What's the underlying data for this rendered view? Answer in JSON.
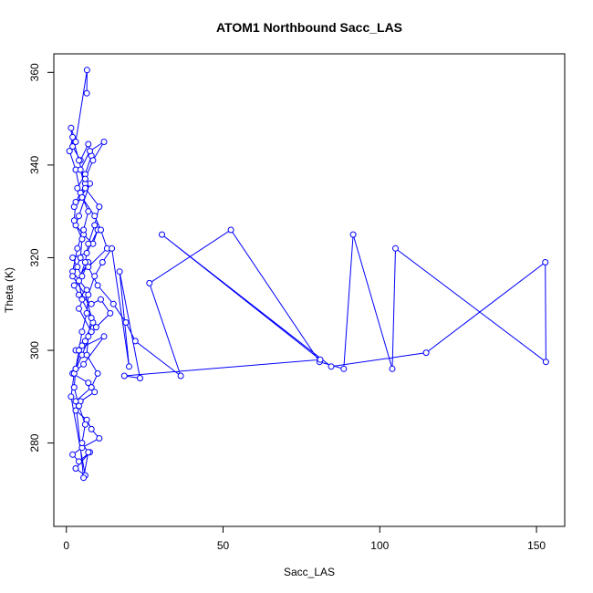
{
  "chart_data": {
    "type": "line",
    "title": "ATOM1 Northbound Sacc_LAS",
    "xlabel": "Sacc_LAS",
    "ylabel": "Theta (K)",
    "xlim": [
      -4,
      159
    ],
    "ylim": [
      262,
      364
    ],
    "x_ticks": [
      0,
      50,
      100,
      150
    ],
    "y_ticks": [
      280,
      300,
      320,
      340,
      360
    ],
    "grid": false,
    "legend": "none",
    "markers": "open-circle",
    "color": "#0000ff",
    "series": [
      {
        "x": [
          6.5,
          6.6,
          3.0,
          1.5,
          2.0,
          4.5,
          7.0,
          8.0,
          6.0,
          3.5,
          5.0,
          2.5,
          7.5,
          4.0,
          3.0,
          5.5,
          8.5,
          10.0,
          6.5,
          2.0,
          3.5,
          5.0,
          7.0,
          2.5,
          4.0,
          8.0,
          11.0,
          14.0,
          9.5,
          6.0,
          3.0,
          12.0,
          5.5,
          2.0,
          7.0,
          9.0,
          4.5,
          3.0,
          6.5,
          8.0,
          10.5,
          5.0,
          2.0,
          4.0,
          7.5,
          3.0,
          6.0,
          1.5,
          2.5,
          5.0,
          8.0,
          4.0,
          6.5,
          2.0,
          3.5,
          5.5,
          7.0,
          4.5,
          3.0,
          1.0,
          2.0,
          4.0,
          6.0,
          3.0,
          2.5,
          5.0,
          4.5,
          2.0,
          6.0,
          8.5,
          5.0,
          3.0,
          2.5,
          4.0,
          6.0,
          5.0,
          7.0,
          5.5,
          3.0,
          8.0,
          10.0,
          6.5,
          7.0,
          8.0,
          5.0,
          4.0,
          6.0,
          7.0,
          9.0,
          10.5,
          6.0,
          4.5,
          7.5,
          12.0,
          8.5,
          6.0,
          5.0,
          9.0,
          11.0,
          13.0,
          7.0,
          10.0,
          15.0,
          19.0,
          22.0,
          36.5,
          26.5,
          52.5,
          80.8,
          88.5,
          91.5,
          104.0,
          105.0,
          153.0,
          152.8,
          114.8,
          84.5,
          30.5,
          81.0,
          18.5,
          23.5,
          17.0,
          20.0,
          14.5,
          11.5,
          9.0,
          7.0,
          6.5,
          5.0,
          4.0,
          3.0
        ],
        "y": [
          355.5,
          360.5,
          345.0,
          348.0,
          344.0,
          341.0,
          344.5,
          342.0,
          338.0,
          335.0,
          333.0,
          331.0,
          336.0,
          329.0,
          327.0,
          325.0,
          323.0,
          326.0,
          321.0,
          320.0,
          318.0,
          316.0,
          319.0,
          314.0,
          312.0,
          310.0,
          311.0,
          308.0,
          305.0,
          302.0,
          300.0,
          303.0,
          297.0,
          295.0,
          293.0,
          291.0,
          289.0,
          287.0,
          285.0,
          283.0,
          281.0,
          279.0,
          277.5,
          276.0,
          278.0,
          274.5,
          273.0,
          290.0,
          295.0,
          299.0,
          304.0,
          309.0,
          313.0,
          317.0,
          322.0,
          326.0,
          330.0,
          334.0,
          339.0,
          343.0,
          346.0,
          341.0,
          336.0,
          332.0,
          328.0,
          324.0,
          320.0,
          316.0,
          312.0,
          306.0,
          301.0,
          296.0,
          292.0,
          288.0,
          284.0,
          280.0,
          278.0,
          272.5,
          289.0,
          292.0,
          295.0,
          299.0,
          303.0,
          307.0,
          311.0,
          315.0,
          319.0,
          323.0,
          327.0,
          331.0,
          335.0,
          339.0,
          343.0,
          345.0,
          341.0,
          337.0,
          333.0,
          329.0,
          326.0,
          322.0,
          318.0,
          314.0,
          310.0,
          306.0,
          302.0,
          294.5,
          314.5,
          326.0,
          297.5,
          296.0,
          325.0,
          296.0,
          322.0,
          297.5,
          319.0,
          299.5,
          296.5,
          325.0,
          298.0,
          294.5,
          294.0,
          317.0,
          296.5,
          322.0,
          319.0,
          316.0,
          312.0,
          308.0,
          304.0,
          300.0,
          296.0
        ]
      }
    ]
  }
}
